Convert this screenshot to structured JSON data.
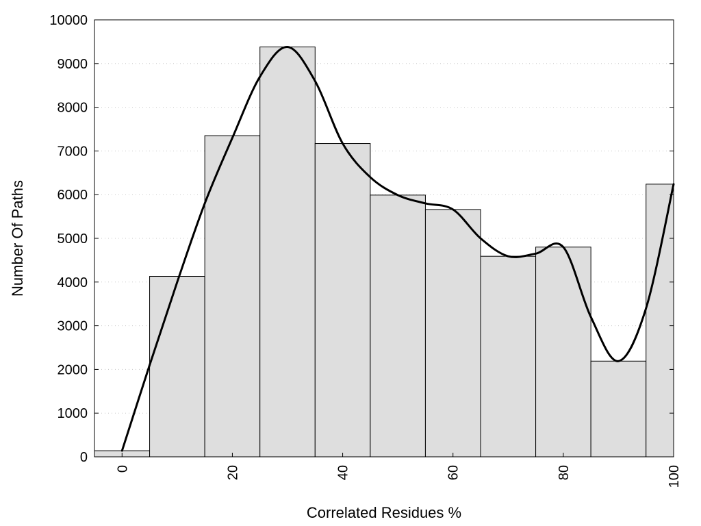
{
  "chart_data": {
    "type": "bar",
    "xlabel": "Correlated Residues %",
    "ylabel": "Number Of Paths",
    "xlim": [
      -5,
      100
    ],
    "ylim": [
      0,
      10000
    ],
    "grid": "horizontal-dotted",
    "bar_color": "#dedede",
    "bar_edge_color": "#000000",
    "curve_color": "#000000",
    "bin_width": 10,
    "bins": [
      {
        "center": 0,
        "value": 140
      },
      {
        "center": 10,
        "value": 4130
      },
      {
        "center": 20,
        "value": 7350
      },
      {
        "center": 30,
        "value": 9380
      },
      {
        "center": 40,
        "value": 7170
      },
      {
        "center": 50,
        "value": 5990
      },
      {
        "center": 60,
        "value": 5660
      },
      {
        "center": 70,
        "value": 4590
      },
      {
        "center": 80,
        "value": 4800
      },
      {
        "center": 90,
        "value": 2190
      },
      {
        "center": 100,
        "value": 6240
      }
    ],
    "x_ticks": [
      "0",
      "20",
      "40",
      "60",
      "80",
      "100"
    ],
    "y_ticks": [
      "0",
      "1000",
      "2000",
      "3000",
      "4000",
      "5000",
      "6000",
      "7000",
      "8000",
      "9000",
      "10000"
    ],
    "smooth_curve": {
      "x": [
        0,
        5,
        10,
        15,
        20,
        25,
        30,
        35,
        40,
        45,
        50,
        55,
        60,
        65,
        70,
        75,
        80,
        85,
        90,
        95,
        100
      ],
      "y": [
        140,
        2100,
        4000,
        5800,
        7300,
        8700,
        9380,
        8600,
        7170,
        6400,
        5990,
        5800,
        5660,
        5000,
        4590,
        4650,
        4800,
        3200,
        2190,
        3400,
        6240
      ]
    }
  }
}
